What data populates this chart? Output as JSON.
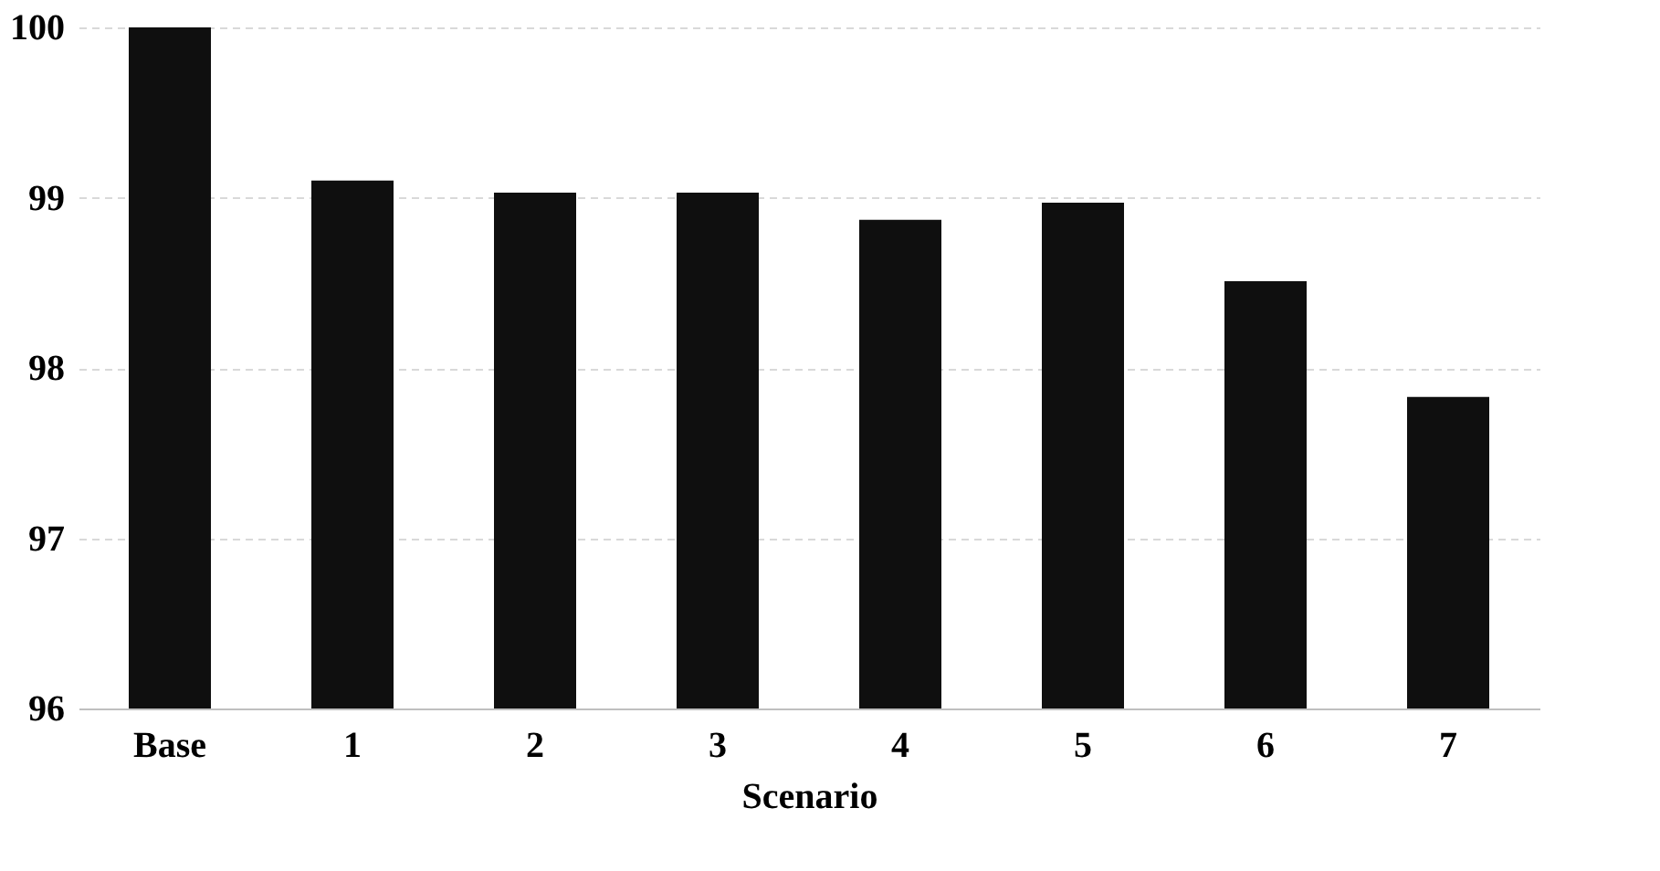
{
  "chart_data": {
    "type": "bar",
    "xlabel": "Scenario",
    "categories": [
      "Base",
      "1",
      "2",
      "3",
      "4",
      "5",
      "6",
      "7"
    ],
    "values": [
      100,
      99.1,
      99.03,
      99.03,
      98.87,
      98.97,
      98.51,
      97.83
    ],
    "color": "#0f0f0f",
    "ylim": [
      96,
      100
    ],
    "yticks": [
      96,
      97,
      98,
      99,
      100
    ],
    "grid": "y"
  }
}
